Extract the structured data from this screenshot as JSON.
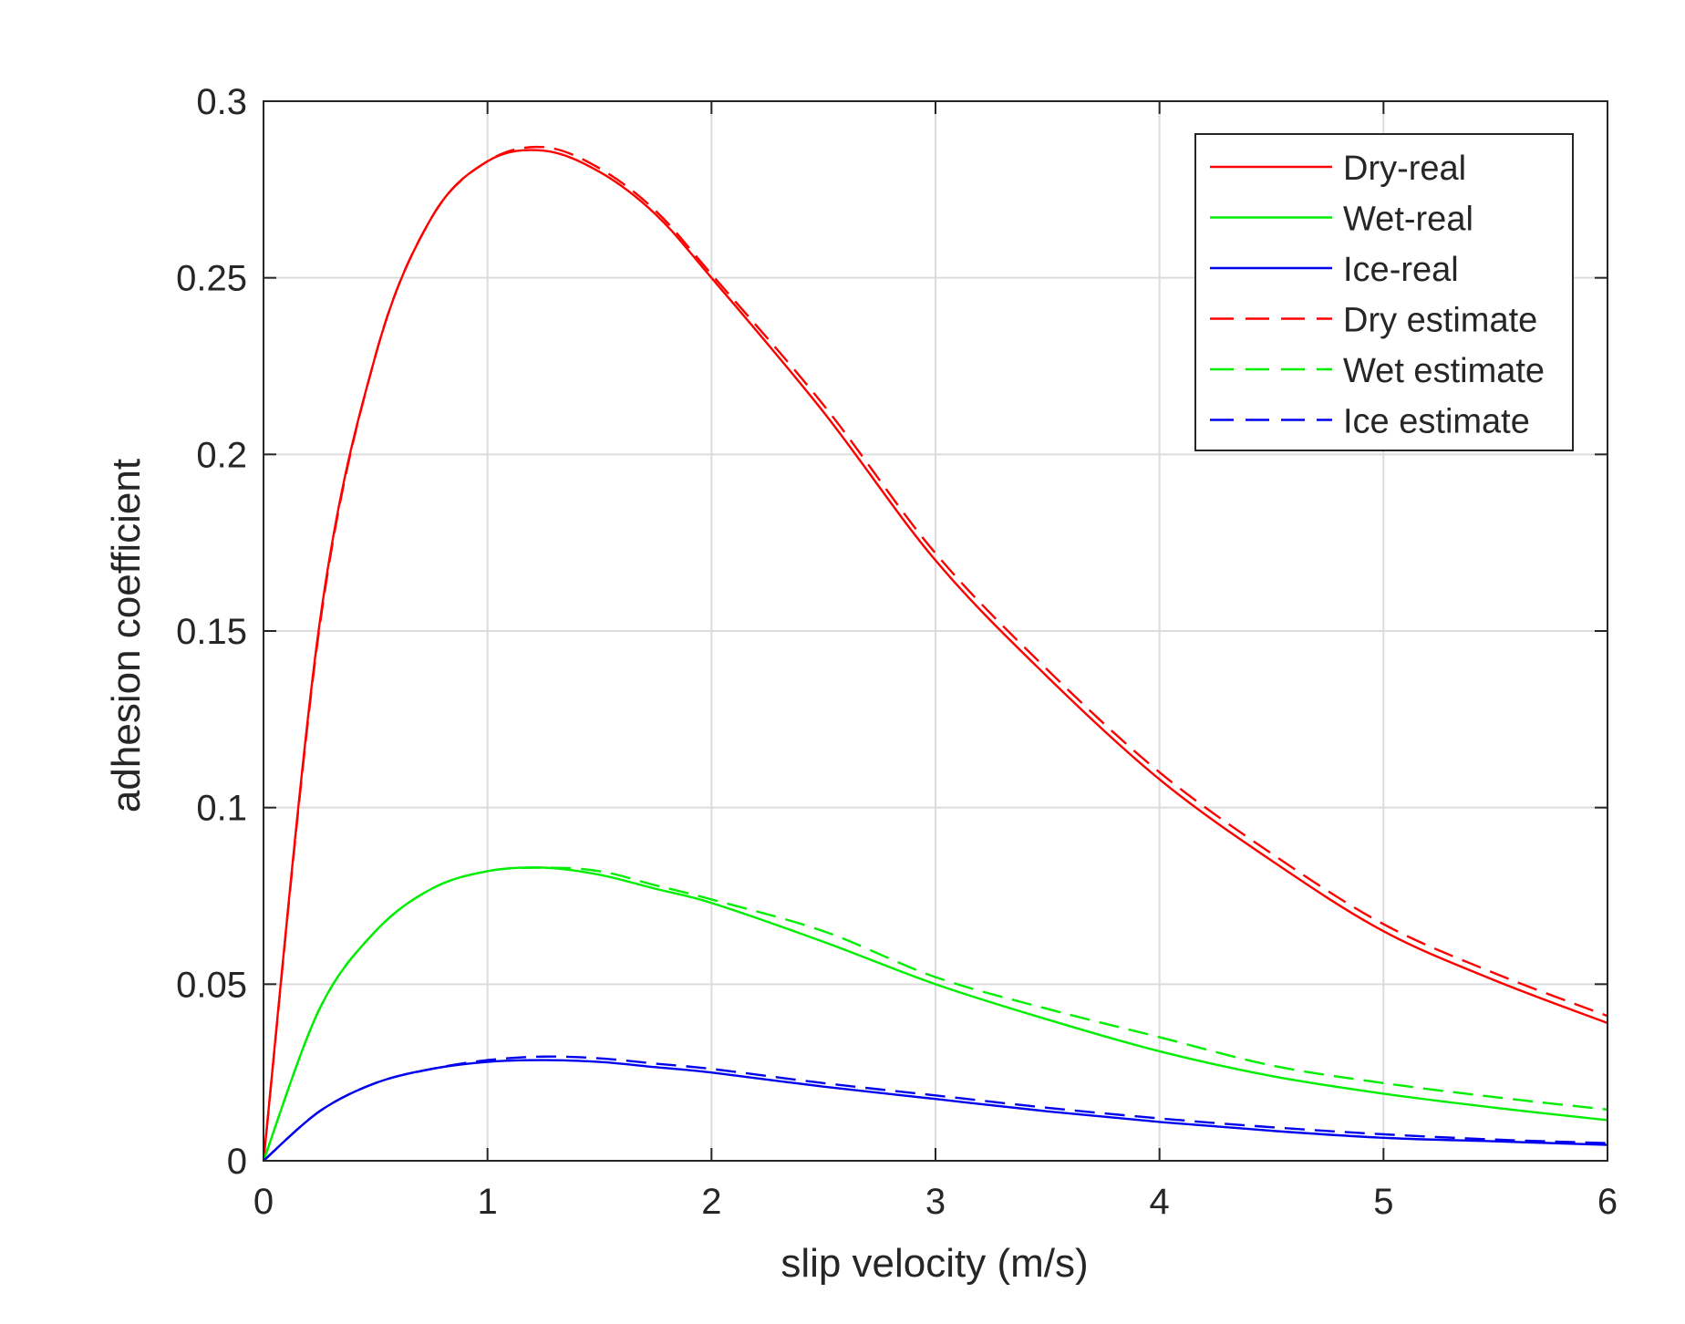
{
  "chart_data": {
    "type": "line",
    "title": "",
    "xlabel": "slip velocity (m/s)",
    "ylabel": "adhesion coefficient",
    "xlim": [
      0,
      6
    ],
    "ylim": [
      0,
      0.3
    ],
    "grid": true,
    "legend_position": "top-right",
    "x_ticks": [
      0,
      1,
      2,
      3,
      4,
      5,
      6
    ],
    "x_tick_labels": [
      "0",
      "1",
      "2",
      "3",
      "4",
      "5",
      "6"
    ],
    "y_ticks": [
      0,
      0.05,
      0.1,
      0.15,
      0.2,
      0.25,
      0.3
    ],
    "y_tick_labels": [
      "0",
      "0.05",
      "0.1",
      "0.15",
      "0.2",
      "0.25",
      "0.3"
    ],
    "x": [
      0,
      0.25,
      0.5,
      0.75,
      1.0,
      1.25,
      1.5,
      1.75,
      2.0,
      2.5,
      3.0,
      3.5,
      4.0,
      4.5,
      5.0,
      5.5,
      6.0
    ],
    "series": [
      {
        "name": "Dry-real",
        "color": "#ff0000",
        "style": "solid",
        "values": [
          0,
          0.152,
          0.228,
          0.267,
          0.283,
          0.286,
          0.28,
          0.268,
          0.25,
          0.212,
          0.17,
          0.137,
          0.108,
          0.085,
          0.065,
          0.051,
          0.039
        ]
      },
      {
        "name": "Wet-real",
        "color": "#00ee00",
        "style": "solid",
        "values": [
          0,
          0.043,
          0.065,
          0.077,
          0.082,
          0.083,
          0.081,
          0.077,
          0.073,
          0.062,
          0.05,
          0.04,
          0.031,
          0.024,
          0.019,
          0.015,
          0.0115
        ]
      },
      {
        "name": "Ice-real",
        "color": "#0000ee",
        "style": "solid",
        "values": [
          0,
          0.014,
          0.022,
          0.026,
          0.028,
          0.0285,
          0.028,
          0.0265,
          0.025,
          0.021,
          0.0175,
          0.014,
          0.011,
          0.0085,
          0.0065,
          0.0055,
          0.0045
        ]
      },
      {
        "name": "Dry estimate",
        "color": "#ff0000",
        "style": "dashed",
        "values": [
          0,
          0.151,
          0.228,
          0.267,
          0.283,
          0.287,
          0.281,
          0.269,
          0.251,
          0.214,
          0.172,
          0.139,
          0.11,
          0.087,
          0.067,
          0.053,
          0.041
        ]
      },
      {
        "name": "Wet estimate",
        "color": "#00ee00",
        "style": "dashed",
        "values": [
          0,
          0.043,
          0.065,
          0.077,
          0.082,
          0.083,
          0.082,
          0.078,
          0.074,
          0.065,
          0.052,
          0.043,
          0.035,
          0.027,
          0.022,
          0.018,
          0.0145
        ]
      },
      {
        "name": "Ice estimate",
        "color": "#0000ee",
        "style": "dashed",
        "values": [
          0,
          0.014,
          0.022,
          0.026,
          0.0285,
          0.0295,
          0.029,
          0.0275,
          0.026,
          0.022,
          0.0185,
          0.015,
          0.012,
          0.0095,
          0.0075,
          0.006,
          0.005
        ]
      }
    ]
  }
}
